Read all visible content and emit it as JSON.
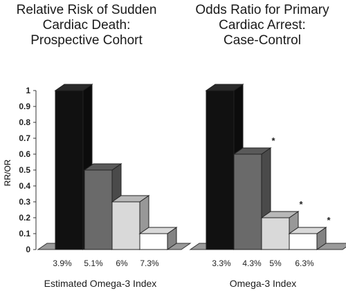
{
  "chart_data": [
    {
      "type": "bar",
      "title": [
        "Relative Risk of Sudden",
        "Cardiac Death:",
        "Prospective Cohort"
      ],
      "xlabel": "Estimated Omega-3 Index",
      "ylabel": "RR/OR",
      "categories": [
        "3.9%",
        "5.1%",
        "6%",
        "7.3%"
      ],
      "values": [
        1.0,
        0.5,
        0.3,
        0.1
      ],
      "significant": [
        false,
        false,
        false,
        false
      ],
      "ylim": [
        0,
        1
      ],
      "yticks": [
        "0",
        "0.1",
        "0.2",
        "0.3",
        "0.4",
        "0.5",
        "0.6",
        "0.7",
        "0.8",
        "0.9",
        "1"
      ],
      "colors": [
        "#111111",
        "#6a6a6a",
        "#d9d9d9",
        "#ffffff"
      ]
    },
    {
      "type": "bar",
      "title": [
        "Odds Ratio for Primary",
        "Cardiac Arrest:",
        "Case-Control"
      ],
      "xlabel": "Omega-3 Index",
      "categories": [
        "3.3%",
        "4.3%",
        "5%",
        "6.3%"
      ],
      "values": [
        1.0,
        0.6,
        0.2,
        0.1
      ],
      "significant": [
        false,
        true,
        true,
        true
      ],
      "significance_marker": "*",
      "ylim": [
        0,
        1
      ],
      "colors": [
        "#111111",
        "#6a6a6a",
        "#d9d9d9",
        "#ffffff"
      ]
    }
  ]
}
